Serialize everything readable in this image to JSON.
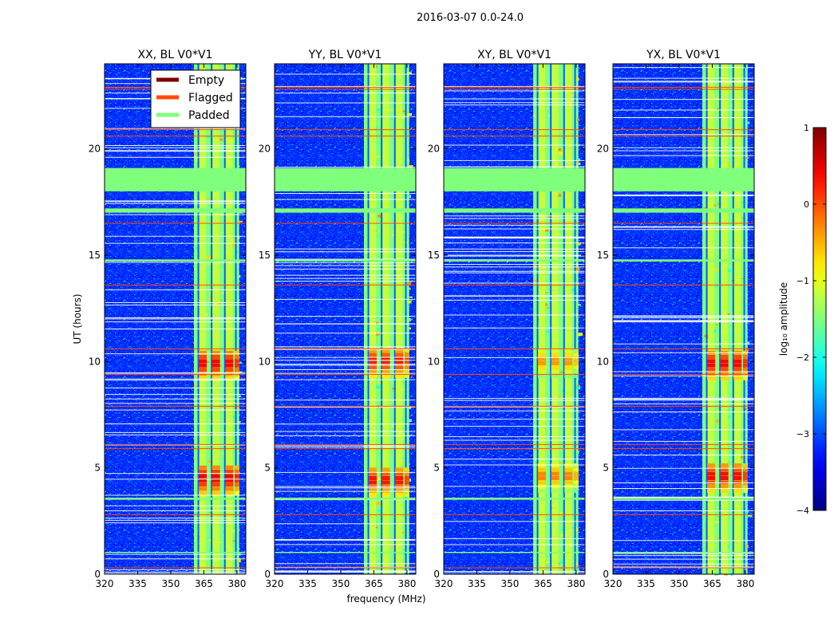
{
  "figure": {
    "suptitle": "2016-03-07 0.0-24.0",
    "xlabel": "frequency (MHz)",
    "ylabel": "UT (hours)"
  },
  "legend": {
    "entries": [
      {
        "label": "Empty",
        "color": "#800000"
      },
      {
        "label": "Flagged",
        "color": "#ff4c00"
      },
      {
        "label": "Padded",
        "color": "#80ff7c"
      }
    ]
  },
  "colorbar": {
    "label": "log₁₀ amplitude",
    "ticks": [
      1,
      0,
      -1,
      -2,
      -3,
      -4
    ],
    "tick_labels": [
      "1",
      "0",
      "−1",
      "−2",
      "−3",
      "−4"
    ],
    "range": [
      -4,
      1
    ],
    "colormap": "jet"
  },
  "chart_data": {
    "type": "heatmap",
    "title": "2016-03-07 0.0-24.0",
    "xlabel": "frequency (MHz)",
    "ylabel": "UT (hours)",
    "xlim": [
      320,
      384
    ],
    "ylim": [
      0,
      24
    ],
    "x_ticks": [
      320,
      335,
      350,
      365,
      380
    ],
    "x_tick_labels": [
      "320",
      "335",
      "350",
      "365",
      "380"
    ],
    "y_ticks": [
      0,
      5,
      10,
      15,
      20
    ],
    "y_tick_labels": [
      "0",
      "5",
      "10",
      "15",
      "20"
    ],
    "value_label": "log10 amplitude",
    "vmin": -4,
    "vmax": 1,
    "panels": [
      {
        "title": "XX, BL V0*V1",
        "band_mhz": [
          360.5,
          381
        ],
        "bursts": [
          {
            "ut": 4.5,
            "level": 0.6
          },
          {
            "ut": 9.9,
            "level": 0.55
          }
        ]
      },
      {
        "title": "YY, BL V0*V1",
        "band_mhz": [
          360.5,
          381
        ],
        "bursts": [
          {
            "ut": 4.4,
            "level": 0.45
          },
          {
            "ut": 10.0,
            "level": 0.45
          }
        ]
      },
      {
        "title": "XY, BL V0*V1",
        "band_mhz": [
          360.5,
          381
        ],
        "bursts": [
          {
            "ut": 4.6,
            "level": -0.1
          },
          {
            "ut": 10.0,
            "level": -0.2
          }
        ]
      },
      {
        "title": "YX, BL V0*V1",
        "band_mhz": [
          360.5,
          381
        ],
        "bursts": [
          {
            "ut": 4.6,
            "level": 0.5
          },
          {
            "ut": 9.9,
            "level": 0.55
          }
        ]
      }
    ],
    "channel_centers_mhz": [
      364.5,
      370.5,
      376.5
    ],
    "padded_ut": [
      [
        18.0,
        18.6
      ],
      [
        18.6,
        19.1
      ],
      [
        17.0,
        17.2
      ],
      [
        14.7,
        14.8
      ],
      [
        3.5,
        3.6
      ],
      [
        1.0,
        1.05
      ]
    ],
    "flagged_ut": [
      0.3,
      2.8,
      5.9,
      6.1,
      7.9,
      9.4,
      10.6,
      13.6,
      16.5,
      20.6,
      20.9,
      22.8,
      22.9
    ]
  }
}
